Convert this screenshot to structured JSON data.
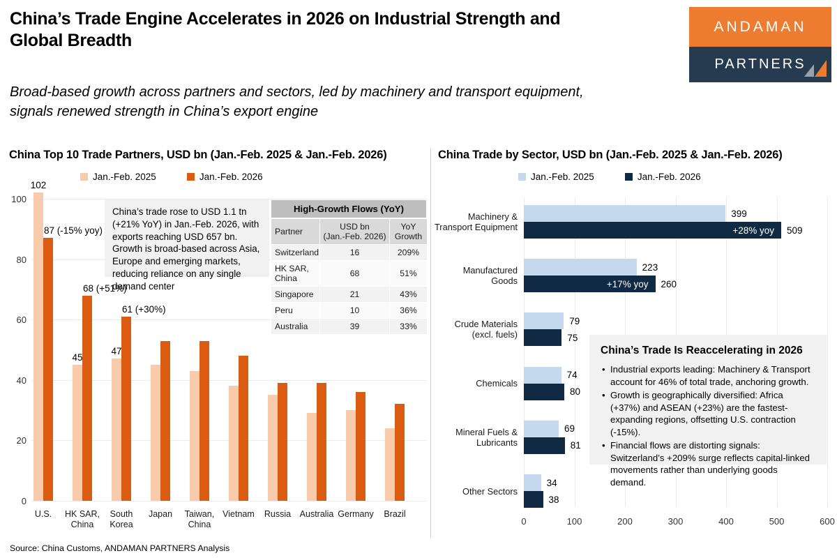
{
  "page": {
    "title": "China’s Trade Engine Accelerates in 2026 on Industrial Strength and\nGlobal Breadth",
    "subtitle": "Broad-based growth across partners and sectors, led by machinery and transport equipment,\nsignals renewed strength in China’s export engine",
    "source_note": "Source: China Customs, ANDAMAN PARTNERS Analysis"
  },
  "logo": {
    "line1": "ANDAMAN",
    "line2": "PARTNERS",
    "colors": {
      "orange": "#ee7c30",
      "navy": "#263b4f",
      "triangle_gray": "#98a2ac"
    }
  },
  "left_panel": {
    "title": "China Top 10 Trade Partners, USD bn (Jan.-Feb. 2025 & Jan.-Feb. 2026)",
    "legend": [
      {
        "label": "Jan.-Feb. 2025",
        "color": "#f8cbad"
      },
      {
        "label": "Jan.-Feb. 2026",
        "color": "#d95c12"
      }
    ],
    "annotation": "China’s trade rose to USD 1.1 tn (+21% YoY) in Jan.-Feb. 2026, with exports reaching USD 657 bn. Growth is broad-based across Asia, Europe and emerging markets, reducing reliance on any single demand center",
    "table": {
      "title": "High-Growth Flows (YoY)",
      "columns": {
        "partner": "Partner",
        "usd_bn": "USD bn\n(Jan.-Feb. 2026)",
        "yoy": "YoY\nGrowth"
      },
      "rows": [
        {
          "partner": "Switzerland",
          "usd_bn": "16",
          "yoy": "209%"
        },
        {
          "partner": "HK SAR,\nChina",
          "usd_bn": "68",
          "yoy": "51%"
        },
        {
          "partner": "Singapore",
          "usd_bn": "21",
          "yoy": "43%"
        },
        {
          "partner": "Peru",
          "usd_bn": "10",
          "yoy": "36%"
        },
        {
          "partner": "Australia",
          "usd_bn": "39",
          "yoy": "33%"
        }
      ]
    }
  },
  "right_panel": {
    "title": "China Trade by Sector, USD bn (Jan.-Feb. 2025 & Jan.-Feb. 2026)",
    "legend": [
      {
        "label": "Jan.-Feb. 2025",
        "color": "#c5d9ee"
      },
      {
        "label": "Jan.-Feb. 2026",
        "color": "#112a43"
      }
    ],
    "infobox": {
      "title": "China’s Trade Is Reaccelerating in 2026",
      "bullets": [
        "Industrial exports leading: Machinery & Transport account for 46% of total trade, anchoring growth.",
        "Growth is geographically diversified: Africa (+37%) and ASEAN (+23%) are the fastest-expanding regions, offsetting U.S. contraction (-15%).",
        "Financial flows are distorting signals: Switzerland’s +209% surge reflects capital-linked movements rather than underlying goods demand."
      ]
    }
  },
  "chart_data": [
    {
      "type": "bar",
      "title": "China Top 10 Trade Partners, USD bn (Jan.-Feb. 2025 & Jan.-Feb. 2026)",
      "categories": [
        "U.S.",
        "HK SAR,\nChina",
        "South\nKorea",
        "Japan",
        "Taiwan,\nChina",
        "Vietnam",
        "Russia",
        "Australia",
        "Germany",
        "Brazil"
      ],
      "series": [
        {
          "name": "Jan.-Feb. 2025",
          "color": "#f8cbad",
          "values": [
            102,
            45,
            47,
            45,
            43,
            38,
            35,
            29,
            30,
            24
          ]
        },
        {
          "name": "Jan.-Feb. 2026",
          "color": "#d95c12",
          "values": [
            87,
            68,
            61,
            53,
            53,
            48,
            39,
            39,
            36,
            32
          ]
        }
      ],
      "bar_labels": [
        {
          "series": 0,
          "index": 0,
          "text": "102"
        },
        {
          "series": 1,
          "index": 0,
          "text": "87 (-15% yoy)"
        },
        {
          "series": 0,
          "index": 1,
          "text": "45"
        },
        {
          "series": 1,
          "index": 1,
          "text": "68 (+51%)"
        },
        {
          "series": 0,
          "index": 2,
          "text": "47"
        },
        {
          "series": 1,
          "index": 2,
          "text": "61 (+30%)"
        }
      ],
      "ylabel": "",
      "ylim": [
        0,
        100
      ],
      "yticks": [
        0,
        20,
        40,
        60,
        80,
        100
      ],
      "grid": true,
      "legend_position": "top"
    },
    {
      "type": "bar",
      "orientation": "horizontal",
      "title": "China Trade by Sector, USD bn (Jan.-Feb. 2025 & Jan.-Feb. 2026)",
      "categories": [
        "Machinery &\nTransport Equipment",
        "Manufactured\nGoods",
        "Crude Materials\n(excl. fuels)",
        "Chemicals",
        "Mineral Fuels &\nLubricants",
        "Other Sectors"
      ],
      "series": [
        {
          "name": "Jan.-Feb. 2025",
          "color": "#c5d9ee",
          "values": [
            399,
            223,
            79,
            74,
            69,
            34
          ]
        },
        {
          "name": "Jan.-Feb. 2026",
          "color": "#112a43",
          "values": [
            509,
            260,
            75,
            80,
            81,
            38
          ]
        }
      ],
      "inside_labels": [
        {
          "index": 0,
          "text": "+28% yoy"
        },
        {
          "index": 1,
          "text": "+17% yoy"
        }
      ],
      "xlim": [
        0,
        600
      ],
      "xticks": [
        0,
        100,
        200,
        300,
        400,
        500,
        600
      ],
      "grid": true,
      "legend_position": "top"
    }
  ]
}
